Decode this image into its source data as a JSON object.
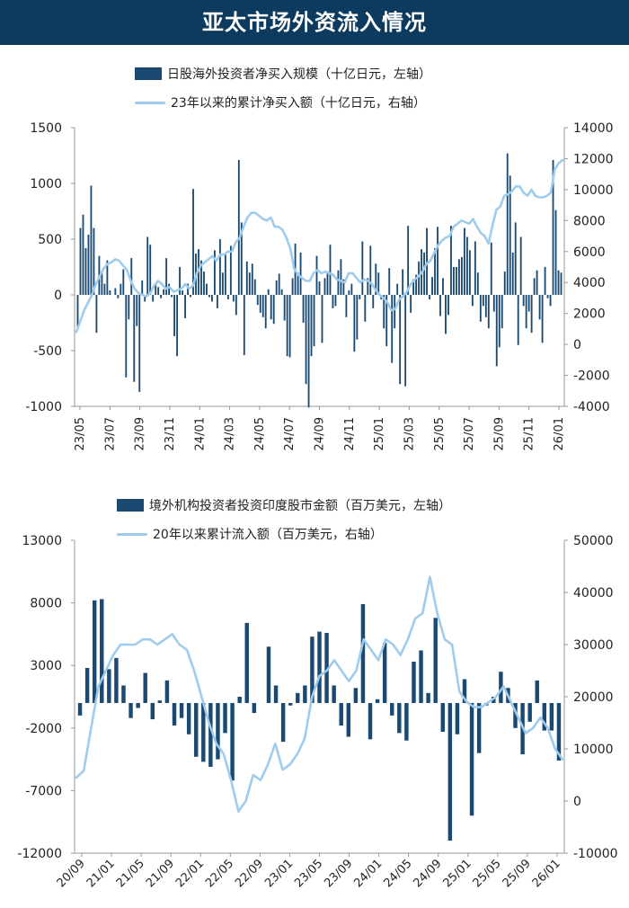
{
  "header": {
    "title": "亚太市场外资流入情况"
  },
  "colors": {
    "header_bg": "#0d3a5f",
    "bar": "#1a4a72",
    "line": "#9fcbec"
  },
  "chart_data": [
    {
      "type": "bar+line",
      "legend": {
        "bar_label": "日股海外投资者净买入规模（十亿日元，左轴）",
        "line_label": "23年以来的累计净买入额（十亿日元，右轴）"
      },
      "x_tick_labels": [
        "23/05",
        "23/07",
        "23/09",
        "23/11",
        "24/01",
        "24/03",
        "24/05",
        "24/07",
        "24/09",
        "24/11",
        "25/01",
        "25/03",
        "25/05",
        "25/07",
        "25/09",
        "25/11",
        "26/01"
      ],
      "y_left": {
        "min": -1000,
        "max": 1500,
        "ticks": [
          -1000,
          -500,
          0,
          500,
          1000,
          1500
        ]
      },
      "y_right": {
        "min": -4000,
        "max": 14000,
        "ticks": [
          -4000,
          -2000,
          0,
          2000,
          4000,
          6000,
          8000,
          10000,
          12000,
          14000
        ]
      },
      "bar_values": [
        -300,
        600,
        720,
        420,
        540,
        980,
        600,
        -340,
        350,
        200,
        100,
        310,
        40,
        0,
        60,
        -30,
        100,
        230,
        -740,
        -220,
        330,
        -780,
        -280,
        -870,
        130,
        -60,
        520,
        450,
        -60,
        100,
        70,
        -30,
        50,
        330,
        100,
        -20,
        -370,
        -550,
        250,
        40,
        -210,
        100,
        -20,
        950,
        370,
        410,
        310,
        210,
        100,
        -20,
        -60,
        400,
        -120,
        500,
        200,
        380,
        -40,
        440,
        -60,
        -180,
        1210,
        650,
        -540,
        300,
        200,
        280,
        140,
        -90,
        -160,
        -200,
        -300,
        50,
        -220,
        -260,
        130,
        190,
        50,
        -230,
        -550,
        -560,
        150,
        460,
        200,
        380,
        -250,
        -800,
        -1010,
        -550,
        -460,
        350,
        120,
        -430,
        150,
        200,
        450,
        -120,
        -100,
        220,
        320,
        140,
        -200,
        40,
        100,
        -510,
        -400,
        -40,
        480,
        -240,
        150,
        440,
        -120,
        280,
        200,
        -40,
        -300,
        -460,
        240,
        -610,
        -300,
        100,
        -800,
        230,
        -820,
        620,
        -160,
        140,
        180,
        300,
        410,
        380,
        600,
        -40,
        160,
        420,
        610,
        -190,
        150,
        -350,
        -180,
        620,
        250,
        250,
        320,
        340,
        600,
        520,
        400,
        -100,
        480,
        200,
        -240,
        -100,
        -200,
        -300,
        470,
        -150,
        -640,
        -470,
        -300,
        210,
        1270,
        1070,
        380,
        650,
        -450,
        520,
        -100,
        -300,
        -150,
        -340,
        150,
        220,
        -220,
        -430,
        250,
        -30,
        -100,
        1210,
        760,
        220,
        200
      ],
      "line_values": [
        800,
        1500,
        2200,
        2700,
        3200,
        3900,
        4400,
        4900,
        5200,
        5300,
        5500,
        5400,
        5100,
        4800,
        4100,
        3600,
        3300,
        3200,
        3100,
        3300,
        3800,
        4100,
        3900,
        3600,
        3700,
        3400,
        3500,
        3600,
        3900,
        3600,
        3800,
        4600,
        5100,
        5300,
        5500,
        5700,
        5400,
        5800,
        5800,
        6000,
        6000,
        6600,
        6900,
        7600,
        8200,
        8500,
        8500,
        8300,
        8100,
        8000,
        8200,
        7600,
        7600,
        7400,
        6900,
        6200,
        4900,
        4500,
        4300,
        4100,
        4100,
        4600,
        4800,
        4600,
        4700,
        4600,
        4500,
        4200,
        4100,
        4000,
        4600,
        4600,
        4300,
        4000,
        4200,
        4100,
        3900,
        3500,
        3200,
        3000,
        2700,
        2200,
        2300,
        2900,
        3100,
        3400,
        3900,
        4200,
        4400,
        4700,
        5200,
        5400,
        5900,
        6400,
        6700,
        6900,
        7000,
        7600,
        7800,
        8000,
        7900,
        7800,
        8100,
        7600,
        7200,
        7000,
        6500,
        7700,
        8700,
        8900,
        9600,
        9700,
        9900,
        10200,
        10200,
        9800,
        9600,
        10000,
        9600,
        9500,
        9500,
        9600,
        9800,
        11300,
        11700,
        11900
      ]
    },
    {
      "type": "bar+line",
      "legend": {
        "bar_label": "境外机构投资者投资印度股市金额（百万美元，左轴）",
        "line_label": "20年以来累计流入额（百万美元，右轴）"
      },
      "x_tick_labels": [
        "20/09",
        "21/01",
        "21/05",
        "21/09",
        "22/01",
        "22/05",
        "22/09",
        "23/01",
        "23/05",
        "23/09",
        "24/01",
        "24/05",
        "24/09",
        "25/01",
        "25/05",
        "25/09",
        "26/01"
      ],
      "y_left": {
        "min": -12000,
        "max": 13000,
        "ticks": [
          -12000,
          -7000,
          -2000,
          3000,
          8000,
          13000
        ]
      },
      "y_right": {
        "min": -10000,
        "max": 50000,
        "ticks": [
          -10000,
          0,
          10000,
          20000,
          30000,
          40000,
          50000
        ]
      },
      "bar_values": [
        -1000,
        2800,
        8200,
        8300,
        2700,
        3600,
        1400,
        -1200,
        -400,
        2400,
        -1300,
        200,
        1800,
        -1800,
        -1200,
        -2500,
        -4300,
        -4700,
        -5100,
        -4500,
        -2400,
        -6200,
        500,
        6400,
        -800,
        0,
        4500,
        1400,
        -3100,
        -200,
        800,
        1400,
        5300,
        5700,
        5600,
        1400,
        -1800,
        -2700,
        1200,
        7900,
        -2900,
        300,
        4800,
        -1000,
        -2400,
        -3000,
        3300,
        4200,
        800,
        6800,
        -2300,
        -11000,
        -2500,
        1900,
        -9000,
        -4000,
        -200,
        500,
        2500,
        1200,
        -2000,
        -4100,
        -1500,
        1800,
        -2200,
        -2200,
        -4600
      ],
      "line_values": [
        4500,
        5800,
        14000,
        22000,
        25000,
        28000,
        30000,
        30000,
        30000,
        31000,
        31000,
        30000,
        31000,
        32000,
        30000,
        29000,
        25000,
        20000,
        15000,
        11000,
        9000,
        4000,
        -2000,
        0,
        5000,
        4000,
        7000,
        11000,
        6000,
        7000,
        9000,
        12000,
        20000,
        24000,
        25000,
        27000,
        25000,
        23000,
        25000,
        31000,
        29000,
        27000,
        31000,
        30000,
        28000,
        31000,
        35000,
        36000,
        43000,
        36000,
        31000,
        30000,
        21000,
        19000,
        18000,
        18000,
        19000,
        20000,
        22000,
        19000,
        16000,
        13000,
        14000,
        16000,
        14000,
        10000,
        8000
      ]
    }
  ]
}
